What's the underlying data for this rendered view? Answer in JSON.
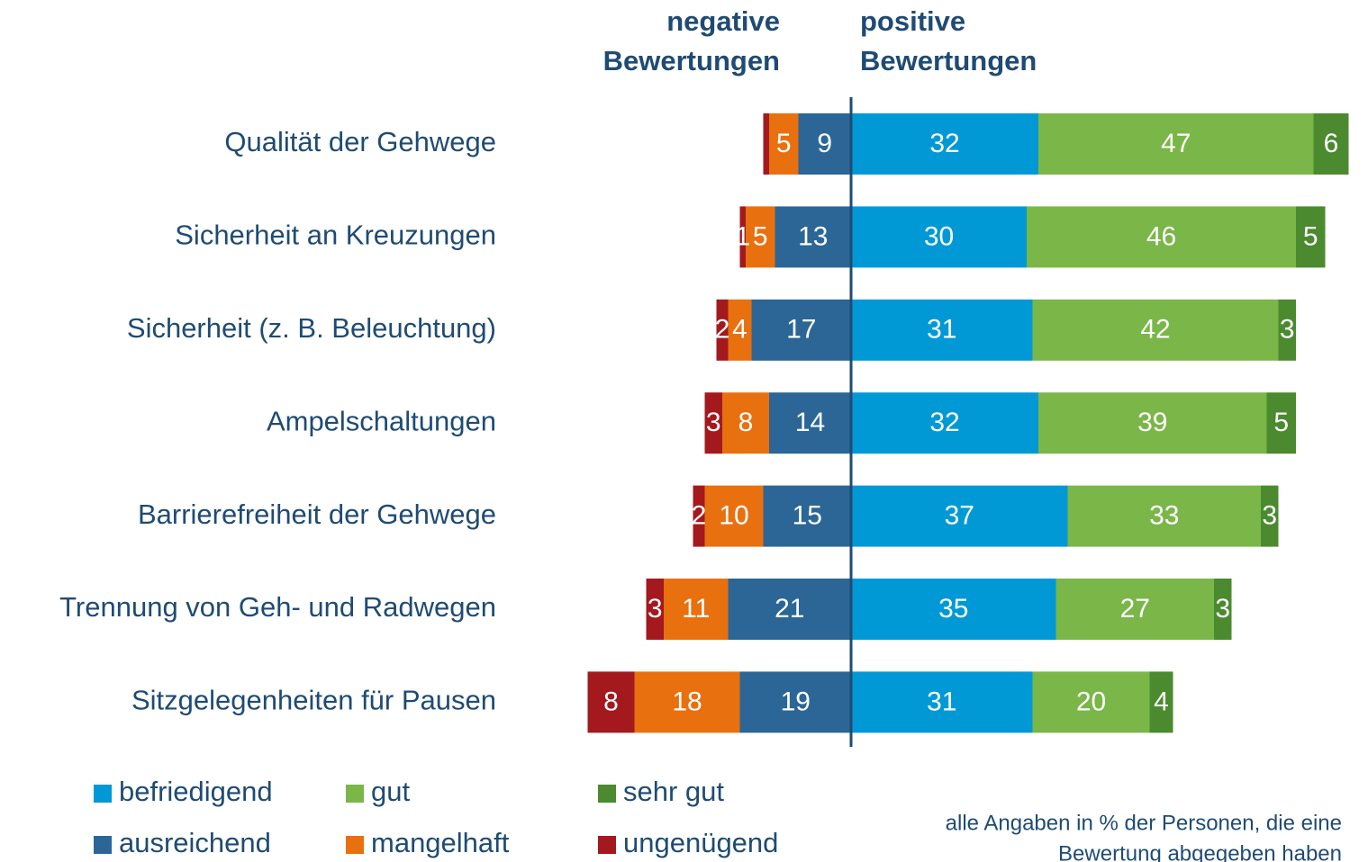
{
  "chart_data": {
    "type": "diverging-bar",
    "negative_header": [
      "negative",
      "Bewertungen"
    ],
    "positive_header": [
      "positive",
      "Bewertungen"
    ],
    "categories": [
      "Qualität der Gehwege",
      "Sicherheit an Kreuzungen",
      "Sicherheit (z. B. Beleuchtung)",
      "Ampelschaltungen",
      "Barrierefreiheit der Gehwege",
      "Trennung von Geh- und Radwegen",
      "Sitzgelegenheiten für Pausen"
    ],
    "series_positive": [
      {
        "name": "befriedigend",
        "color": "#0099d6",
        "values": [
          32,
          30,
          31,
          32,
          37,
          35,
          31
        ]
      },
      {
        "name": "gut",
        "color": "#7ab648",
        "values": [
          47,
          46,
          42,
          39,
          33,
          27,
          20
        ]
      },
      {
        "name": "sehr gut",
        "color": "#4b8a2f",
        "values": [
          6,
          5,
          3,
          5,
          3,
          3,
          4
        ]
      }
    ],
    "series_negative": [
      {
        "name": "ausreichend",
        "color": "#2b6696",
        "values": [
          9,
          13,
          17,
          14,
          15,
          21,
          19
        ]
      },
      {
        "name": "mangelhaft",
        "color": "#e9700f",
        "values": [
          5,
          5,
          4,
          8,
          10,
          11,
          18
        ]
      },
      {
        "name": "ungenügend",
        "color": "#a3191e",
        "values": [
          1,
          1,
          2,
          3,
          2,
          3,
          8
        ],
        "value_labels": [
          null,
          "1",
          "2",
          "3",
          "2",
          "3",
          "8"
        ]
      }
    ],
    "note": [
      "alle Angaben in % der Personen, die eine",
      "Bewertung abgegeben haben"
    ]
  }
}
